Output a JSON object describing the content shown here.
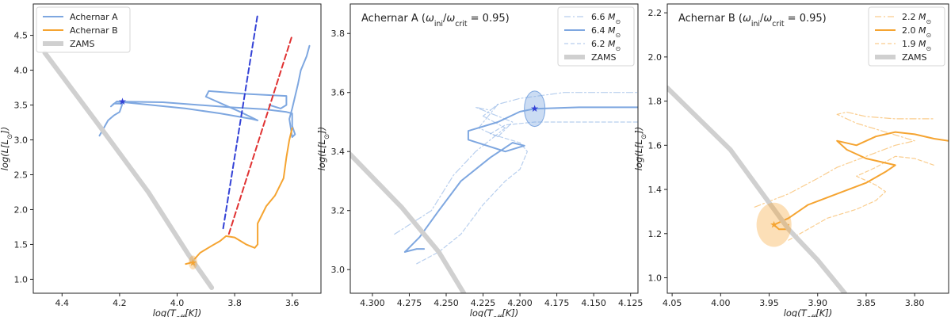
{
  "chart_data": [
    {
      "type": "line",
      "xlabel": "log(T_eff[K])",
      "ylabel": "log(L[L_⊙])",
      "xlim": [
        4.5,
        3.5
      ],
      "ylim": [
        0.8,
        4.95
      ],
      "xticks": [
        4.4,
        4.2,
        4.0,
        3.8,
        3.6
      ],
      "yticks": [
        1.0,
        1.5,
        2.0,
        2.5,
        3.0,
        3.5,
        4.0,
        4.5
      ],
      "xtick_labels": [
        "4.4",
        "4.2",
        "4.0",
        "3.8",
        "3.6"
      ],
      "ytick_labels": [
        "1.0",
        "1.5",
        "2.0",
        "2.5",
        "3.0",
        "3.5",
        "4.0",
        "4.5"
      ],
      "legend_position": "top-left",
      "legend": [
        "Achernar A",
        "Achernar B",
        "ZAMS"
      ],
      "colors": {
        "a": "#7ea7e0",
        "b": "#f5a431",
        "zams": "#d0d0d0",
        "blue_edge": "#3341d6",
        "red_edge": "#e03232"
      },
      "series": [
        {
          "name": "Achernar A",
          "points": [
            [
              4.27,
              3.06
            ],
            [
              4.24,
              3.28
            ],
            [
              4.22,
              3.35
            ],
            [
              4.2,
              3.4
            ],
            [
              4.19,
              3.52
            ],
            [
              4.22,
              3.52
            ],
            [
              4.23,
              3.48
            ],
            [
              4.21,
              3.55
            ],
            [
              4.05,
              3.54
            ],
            [
              3.95,
              3.51
            ],
            [
              3.82,
              3.47
            ],
            [
              3.7,
              3.44
            ],
            [
              3.62,
              3.4
            ],
            [
              3.6,
              3.38
            ],
            [
              3.6,
              3.3
            ],
            [
              3.6,
              3.2
            ],
            [
              3.59,
              3.08
            ],
            [
              3.6,
              3.04
            ],
            [
              3.61,
              3.3
            ],
            [
              3.6,
              3.45
            ],
            [
              3.58,
              3.8
            ],
            [
              3.57,
              4.0
            ],
            [
              3.55,
              4.2
            ],
            [
              3.54,
              4.35
            ]
          ]
        },
        {
          "name": "Achernar A loop",
          "points": [
            [
              4.21,
              3.55
            ],
            [
              3.97,
              3.45
            ],
            [
              3.85,
              3.38
            ],
            [
              3.74,
              3.3
            ],
            [
              3.72,
              3.28
            ],
            [
              3.78,
              3.4
            ],
            [
              3.9,
              3.62
            ],
            [
              3.89,
              3.7
            ],
            [
              3.76,
              3.66
            ],
            [
              3.62,
              3.63
            ],
            [
              3.62,
              3.5
            ],
            [
              3.64,
              3.45
            ],
            [
              3.68,
              3.5
            ]
          ]
        },
        {
          "name": "Achernar B",
          "points": [
            [
              3.97,
              1.22
            ],
            [
              3.95,
              1.24
            ],
            [
              3.92,
              1.38
            ],
            [
              3.88,
              1.48
            ],
            [
              3.85,
              1.55
            ],
            [
              3.83,
              1.62
            ],
            [
              3.8,
              1.6
            ],
            [
              3.76,
              1.5
            ],
            [
              3.73,
              1.45
            ],
            [
              3.72,
              1.5
            ],
            [
              3.72,
              1.8
            ],
            [
              3.69,
              2.05
            ],
            [
              3.66,
              2.2
            ],
            [
              3.63,
              2.45
            ],
            [
              3.62,
              2.75
            ],
            [
              3.61,
              3.0
            ],
            [
              3.6,
              3.17
            ]
          ]
        },
        {
          "name": "blue edge",
          "points": [
            [
              3.84,
              1.73
            ],
            [
              3.72,
              4.8
            ]
          ]
        },
        {
          "name": "red edge",
          "points": [
            [
              3.82,
              1.65
            ],
            [
              3.6,
              4.5
            ]
          ]
        },
        {
          "name": "ZAMS",
          "points": [
            [
              4.46,
              4.25
            ],
            [
              4.27,
              3.2
            ],
            [
              4.1,
              2.25
            ],
            [
              3.96,
              1.35
            ],
            [
              3.88,
              0.88
            ]
          ]
        }
      ],
      "markers": [
        {
          "label": "★",
          "x": 4.19,
          "y": 3.55
        },
        {
          "label": "★",
          "x": 3.945,
          "y": 1.24,
          "circle_radius_x": 0.015,
          "circle_radius_y": 0.1
        }
      ]
    },
    {
      "type": "line",
      "title": "Achernar A (ω_ini/ω_crit = 0.95)",
      "xlabel": "log(T_eff[K])",
      "ylabel": "log(L[L_⊙])",
      "xlim": [
        4.315,
        4.12
      ],
      "ylim": [
        2.92,
        3.9
      ],
      "xticks": [
        4.3,
        4.275,
        4.25,
        4.225,
        4.2,
        4.175,
        4.15,
        4.125
      ],
      "yticks": [
        3.0,
        3.2,
        3.4,
        3.6,
        3.8
      ],
      "xtick_labels": [
        "4.300",
        "4.275",
        "4.250",
        "4.225",
        "4.200",
        "4.175",
        "4.150",
        "4.125"
      ],
      "ytick_labels": [
        "3.0",
        "3.2",
        "3.4",
        "3.6",
        "3.8"
      ],
      "legend_position": "top-right",
      "legend": [
        "6.6 M_⊙",
        "6.4 M_⊙",
        "6.2 M_⊙",
        "ZAMS"
      ],
      "series": [
        {
          "name": "6.6 M⊙",
          "style": "dashdot",
          "points": [
            [
              4.285,
              3.12
            ],
            [
              4.26,
              3.2
            ],
            [
              4.245,
              3.32
            ],
            [
              4.23,
              3.4
            ],
            [
              4.215,
              3.46
            ],
            [
              4.21,
              3.48
            ],
            [
              4.225,
              3.52
            ],
            [
              4.215,
              3.56
            ],
            [
              4.2,
              3.58
            ],
            [
              4.17,
              3.6
            ],
            [
              4.12,
              3.6
            ]
          ]
        },
        {
          "name": "6.6 M⊙ loop",
          "style": "dashdot",
          "points": [
            [
              4.215,
              3.56
            ],
            [
              4.228,
              3.48
            ],
            [
              4.215,
              3.45
            ],
            [
              4.205,
              3.5
            ],
            [
              4.23,
              3.55
            ],
            [
              4.22,
              3.54
            ]
          ]
        },
        {
          "name": "6.4 M⊙",
          "style": "solid",
          "points": [
            [
              4.278,
              3.06
            ],
            [
              4.268,
              3.11
            ],
            [
              4.255,
              3.2
            ],
            [
              4.24,
              3.3
            ],
            [
              4.22,
              3.38
            ],
            [
              4.205,
              3.43
            ],
            [
              4.197,
              3.42
            ],
            [
              4.21,
              3.4
            ],
            [
              4.235,
              3.44
            ],
            [
              4.235,
              3.47
            ],
            [
              4.215,
              3.5
            ],
            [
              4.2,
              3.535
            ],
            [
              4.19,
              3.545
            ],
            [
              4.16,
              3.55
            ],
            [
              4.12,
              3.55
            ]
          ]
        },
        {
          "name": "6.4 M⊙ tail",
          "style": "solid",
          "points": [
            [
              4.278,
              3.06
            ],
            [
              4.27,
              3.07
            ],
            [
              4.265,
              3.07
            ]
          ]
        },
        {
          "name": "6.2 M⊙",
          "style": "dashed",
          "points": [
            [
              4.27,
              3.02
            ],
            [
              4.255,
              3.06
            ],
            [
              4.24,
              3.12
            ],
            [
              4.225,
              3.22
            ],
            [
              4.21,
              3.3
            ],
            [
              4.2,
              3.34
            ],
            [
              4.195,
              3.4
            ],
            [
              4.2,
              3.43
            ],
            [
              4.22,
              3.46
            ],
            [
              4.21,
              3.49
            ],
            [
              4.19,
              3.5
            ],
            [
              4.15,
              3.5
            ],
            [
              4.12,
              3.5
            ]
          ]
        },
        {
          "name": "ZAMS",
          "points": [
            [
              4.315,
              3.39
            ],
            [
              4.28,
              3.21
            ],
            [
              4.255,
              3.06
            ],
            [
              4.238,
              2.92
            ]
          ]
        }
      ],
      "markers": [
        {
          "label": "★",
          "x": 4.19,
          "y": 3.545,
          "circle_radius_x": 0.007,
          "circle_radius_y": 0.06
        }
      ]
    },
    {
      "type": "line",
      "title": "Achernar B (ω_ini/ω_crit = 0.95)",
      "xlabel": "log(T_eff[K])",
      "ylabel": "log(L[L_⊙])",
      "xlim": [
        4.055,
        3.765
      ],
      "ylim": [
        0.93,
        2.24
      ],
      "xticks": [
        4.05,
        4.0,
        3.95,
        3.9,
        3.85,
        3.8
      ],
      "yticks": [
        1.0,
        1.2,
        1.4,
        1.6,
        1.8,
        2.0,
        2.2
      ],
      "xtick_labels": [
        "4.05",
        "4.00",
        "3.95",
        "3.90",
        "3.85",
        "3.80"
      ],
      "ytick_labels": [
        "1.0",
        "1.2",
        "1.4",
        "1.6",
        "1.8",
        "2.0",
        "2.2"
      ],
      "legend_position": "top-right",
      "legend": [
        "2.2 M_⊙",
        "2.0 M_⊙",
        "1.9 M_⊙",
        "ZAMS"
      ],
      "series": [
        {
          "name": "2.2 M⊙",
          "style": "dashdot",
          "points": [
            [
              3.965,
              1.32
            ],
            [
              3.93,
              1.38
            ],
            [
              3.9,
              1.45
            ],
            [
              3.88,
              1.5
            ],
            [
              3.85,
              1.55
            ],
            [
              3.82,
              1.6
            ],
            [
              3.8,
              1.62
            ],
            [
              3.83,
              1.66
            ],
            [
              3.86,
              1.7
            ],
            [
              3.88,
              1.74
            ],
            [
              3.87,
              1.75
            ],
            [
              3.85,
              1.73
            ],
            [
              3.82,
              1.72
            ],
            [
              3.8,
              1.72
            ],
            [
              3.78,
              1.72
            ]
          ]
        },
        {
          "name": "2.0 M⊙",
          "style": "solid",
          "points": [
            [
              3.945,
              1.24
            ],
            [
              3.93,
              1.27
            ],
            [
              3.91,
              1.33
            ],
            [
              3.88,
              1.38
            ],
            [
              3.85,
              1.43
            ],
            [
              3.83,
              1.48
            ],
            [
              3.82,
              1.51
            ],
            [
              3.85,
              1.54
            ],
            [
              3.87,
              1.58
            ],
            [
              3.88,
              1.62
            ],
            [
              3.86,
              1.6
            ],
            [
              3.84,
              1.64
            ],
            [
              3.82,
              1.66
            ],
            [
              3.8,
              1.65
            ],
            [
              3.78,
              1.63
            ],
            [
              3.765,
              1.62
            ]
          ]
        },
        {
          "name": "2.0 M⊙ tail",
          "style": "solid",
          "points": [
            [
              3.945,
              1.24
            ],
            [
              3.94,
              1.22
            ],
            [
              3.932,
              1.22
            ],
            [
              3.93,
              1.24
            ]
          ]
        },
        {
          "name": "1.9 M⊙",
          "style": "dashed",
          "points": [
            [
              3.93,
              1.17
            ],
            [
              3.91,
              1.22
            ],
            [
              3.89,
              1.27
            ],
            [
              3.86,
              1.31
            ],
            [
              3.84,
              1.35
            ],
            [
              3.83,
              1.39
            ],
            [
              3.84,
              1.42
            ],
            [
              3.86,
              1.46
            ],
            [
              3.85,
              1.48
            ],
            [
              3.84,
              1.5
            ],
            [
              3.82,
              1.55
            ],
            [
              3.8,
              1.54
            ],
            [
              3.78,
              1.51
            ]
          ]
        },
        {
          "name": "ZAMS",
          "points": [
            [
              4.055,
              1.86
            ],
            [
              3.99,
              1.58
            ],
            [
              3.93,
              1.22
            ],
            [
              3.9,
              1.08
            ],
            [
              3.872,
              0.93
            ]
          ]
        }
      ],
      "markers": [
        {
          "label": "★",
          "x": 3.945,
          "y": 1.24,
          "circle_radius_x": 0.018,
          "circle_radius_y": 0.1
        }
      ]
    }
  ]
}
